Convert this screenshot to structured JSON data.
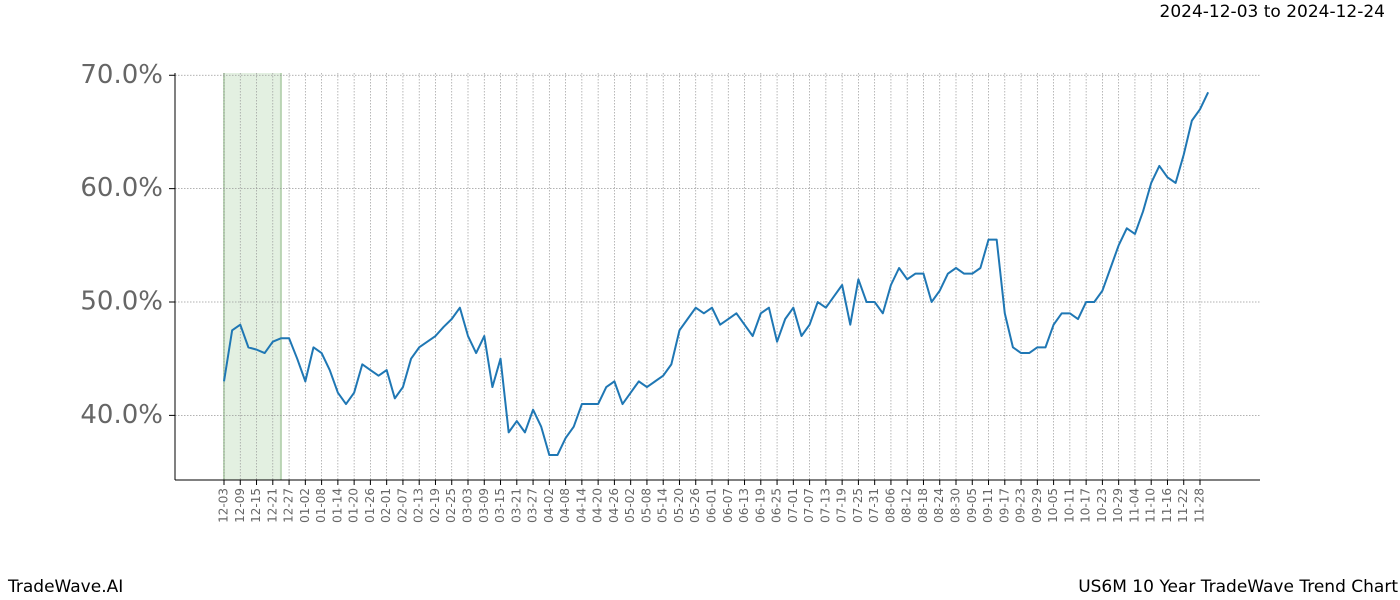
{
  "chart_data": {
    "type": "line",
    "range_title": "2024-12-03 to 2024-12-24",
    "brand": "TradeWave.AI",
    "title": "US6M 10 Year TradeWave Trend Chart",
    "categories": [
      "12-03",
      null,
      "12-09",
      null,
      "12-15",
      null,
      "12-21",
      null,
      "12-27",
      null,
      "01-02",
      null,
      "01-08",
      null,
      "01-14",
      null,
      "01-20",
      null,
      "01-26",
      null,
      "02-01",
      null,
      "02-07",
      null,
      "02-13",
      null,
      "02-19",
      null,
      "02-25",
      null,
      "03-03",
      null,
      "03-09",
      null,
      "03-15",
      null,
      "03-21",
      null,
      "03-27",
      null,
      "04-02",
      null,
      "04-08",
      null,
      "04-14",
      null,
      "04-20",
      null,
      "04-26",
      null,
      "05-02",
      null,
      "05-08",
      null,
      "05-14",
      null,
      "05-20",
      null,
      "05-26",
      null,
      "06-01",
      null,
      "06-07",
      null,
      "06-13",
      null,
      "06-19",
      null,
      "06-25",
      null,
      "07-01",
      null,
      "07-07",
      null,
      "07-13",
      null,
      "07-19",
      null,
      "07-25",
      null,
      "07-31",
      null,
      "08-06",
      null,
      "08-12",
      null,
      "08-18",
      null,
      "08-24",
      null,
      "08-30",
      null,
      "09-05",
      null,
      "09-11",
      null,
      "09-17",
      null,
      "09-23",
      null,
      "09-29",
      null,
      "10-05",
      null,
      "10-11",
      null,
      "10-17",
      null,
      "10-23",
      null,
      "10-29",
      null,
      "11-04",
      null,
      "11-10",
      null,
      "11-16",
      null,
      "11-22",
      null,
      "11-28",
      null
    ],
    "series": [
      {
        "color": "#1f77b4",
        "values": [
          43,
          47.5,
          48,
          46,
          45.8,
          45.5,
          46.5,
          46.8,
          46.8,
          45,
          43,
          46,
          45.5,
          44,
          42,
          41,
          42,
          44.5,
          44,
          43.5,
          44,
          41.5,
          42.5,
          45,
          46,
          46.5,
          47,
          47.8,
          48.5,
          49.5,
          47,
          45.5,
          47,
          42.5,
          45,
          38.5,
          39.5,
          38.5,
          40.5,
          39,
          36.5,
          36.5,
          38,
          39,
          41,
          41,
          41,
          42.5,
          43,
          41,
          42,
          43,
          42.5,
          43,
          43.5,
          44.5,
          47.5,
          48.5,
          49.5,
          49,
          49.5,
          48,
          48.5,
          49,
          48,
          47,
          49,
          49.5,
          46.5,
          48.5,
          49.5,
          47,
          48,
          50,
          49.5,
          50.5,
          51.5,
          48,
          52,
          50,
          50,
          49,
          51.5,
          53,
          52,
          52.5,
          52.5,
          50,
          51,
          52.5,
          53,
          52.5,
          52.5,
          53,
          55.5,
          55.5,
          49,
          46,
          45.5,
          45.5,
          46,
          46,
          48,
          49,
          49,
          48.5,
          50,
          50,
          51,
          53,
          55,
          56.5,
          56,
          58,
          60.5,
          62,
          61,
          60.5,
          63,
          66,
          67,
          68.5
        ]
      }
    ],
    "ylim": [
      34.3,
      70.2
    ],
    "yticks": [
      {
        "value": 40,
        "label": "40.0%"
      },
      {
        "value": 50,
        "label": "50.0%"
      },
      {
        "value": 60,
        "label": "60.0%"
      },
      {
        "value": 70,
        "label": "70.0%"
      }
    ],
    "grid": true,
    "highlight": {
      "x": [
        0,
        7
      ],
      "color": "#e3f0e1"
    }
  }
}
